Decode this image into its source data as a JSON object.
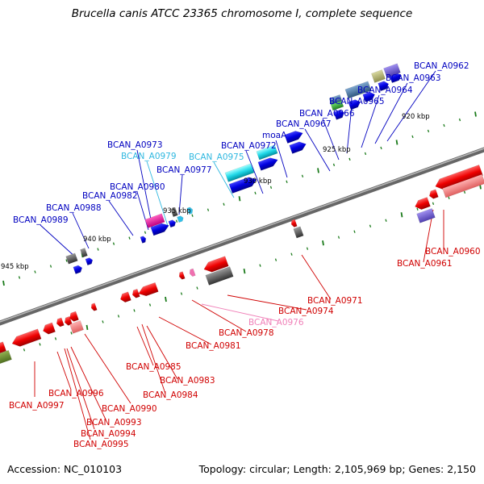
{
  "title": "Brucella canis ATCC 23365 chromosome I, complete sequence",
  "footer": {
    "accession": "Accession: NC_010103",
    "summary": "Topology: circular; Length: 2,105,969 bp; Genes: 2,150"
  },
  "colors": {
    "forward": "#0000e0",
    "reverse": "#e00000",
    "cyan": "#30c0e8",
    "pink": "#f070b0",
    "backbone": "#888888",
    "tick": "#1a7a1a"
  },
  "kbp_marks": [
    {
      "label": "945 kbp"
    },
    {
      "label": "940 kbp"
    },
    {
      "label": "935 kbp"
    },
    {
      "label": "930 kbp"
    },
    {
      "label": "925 kbp"
    },
    {
      "label": "920 kbp"
    }
  ],
  "top_labels": [
    {
      "text": "BCAN_A0962",
      "color": "#0000c0"
    },
    {
      "text": "BCAN_A0963",
      "color": "#0000c0"
    },
    {
      "text": "BCAN_A0964",
      "color": "#0000c0"
    },
    {
      "text": "BCAN_A0965",
      "color": "#0000c0"
    },
    {
      "text": "BCAN_A0966",
      "color": "#0000c0"
    },
    {
      "text": "BCAN_A0967",
      "color": "#0000c0"
    },
    {
      "text": "moaA",
      "color": "#0000c0"
    },
    {
      "text": "BCAN_A0972",
      "color": "#0000c0"
    },
    {
      "text": "BCAN_A0973",
      "color": "#0000c0"
    },
    {
      "text": "BCAN_A0979",
      "color": "#30b8e0"
    },
    {
      "text": "BCAN_A0977",
      "color": "#0000c0"
    },
    {
      "text": "BCAN_A0975",
      "color": "#30b8e0"
    },
    {
      "text": "BCAN_A0980",
      "color": "#0000c0"
    },
    {
      "text": "BCAN_A0982",
      "color": "#0000c0"
    },
    {
      "text": "BCAN_A0988",
      "color": "#0000c0"
    },
    {
      "text": "BCAN_A0989",
      "color": "#0000c0"
    }
  ],
  "bottom_labels": [
    {
      "text": "BCAN_A0960",
      "color": "#d00000"
    },
    {
      "text": "BCAN_A0961",
      "color": "#d00000"
    },
    {
      "text": "BCAN_A0971",
      "color": "#d00000"
    },
    {
      "text": "BCAN_A0974",
      "color": "#d00000"
    },
    {
      "text": "BCAN_A0976",
      "color": "#f080b8"
    },
    {
      "text": "BCAN_A0978",
      "color": "#d00000"
    },
    {
      "text": "BCAN_A0981",
      "color": "#d00000"
    },
    {
      "text": "BCAN_A0985",
      "color": "#d00000"
    },
    {
      "text": "BCAN_A0983",
      "color": "#d00000"
    },
    {
      "text": "BCAN_A0984",
      "color": "#d00000"
    },
    {
      "text": "BCAN_A0990",
      "color": "#d00000"
    },
    {
      "text": "BCAN_A0996",
      "color": "#d00000"
    },
    {
      "text": "BCAN_A0997",
      "color": "#d00000"
    },
    {
      "text": "BCAN_A0993",
      "color": "#d00000"
    },
    {
      "text": "BCAN_A0994",
      "color": "#d00000"
    },
    {
      "text": "BCAN_A0995",
      "color": "#d00000"
    }
  ]
}
